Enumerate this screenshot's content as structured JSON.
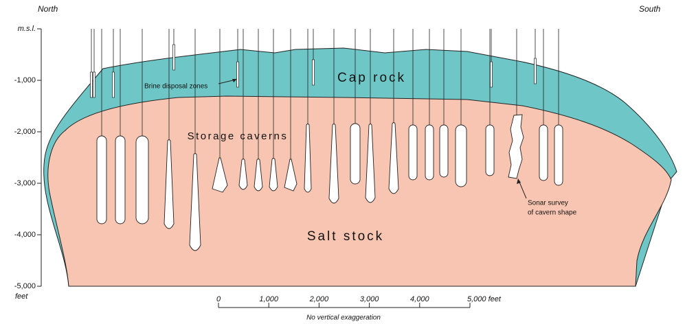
{
  "header": {
    "left": "North",
    "right": "South"
  },
  "depth_axis": {
    "ticks": [
      "m.s.l.",
      "-1,000",
      "-2,000",
      "-3,000",
      "-4,000",
      "-5,000"
    ],
    "unit": "feet"
  },
  "labels": {
    "cap_rock": "Cap rock",
    "storage_caverns": "Storage caverns",
    "salt_stock": "Salt stock",
    "brine_disposal": "Brine disposal zones",
    "sonar": [
      "Sonar survey",
      "of cavern shape"
    ]
  },
  "scale_bar": {
    "ticks": [
      "0",
      "1,000",
      "2,000",
      "3,000",
      "4,000",
      "5,000 feet"
    ],
    "note": "No vertical exaggeration"
  }
}
